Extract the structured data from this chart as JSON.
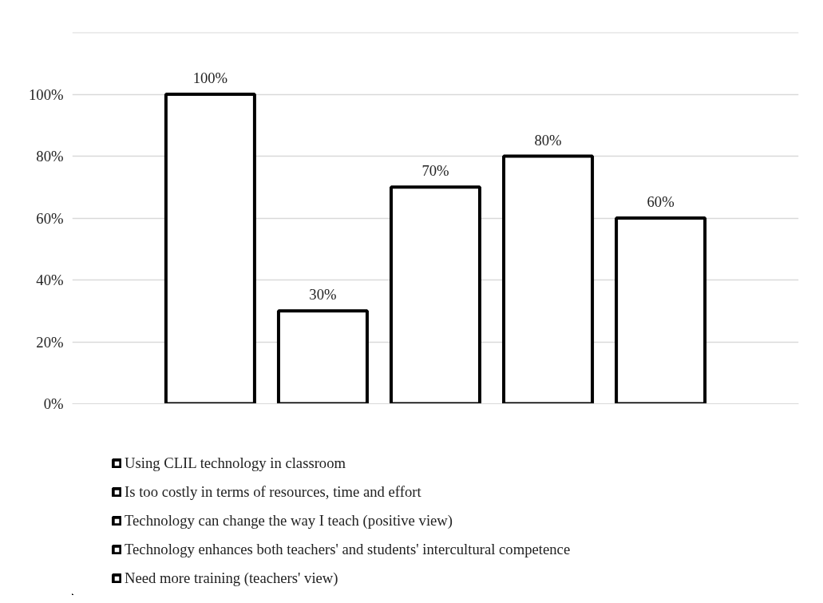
{
  "chart_data": {
    "type": "bar",
    "categories": [
      null
    ],
    "series": [
      {
        "name": "Using CLIL technology in classroom",
        "color": "#ffffff",
        "values": [
          100
        ],
        "value_labels": [
          "100%"
        ]
      },
      {
        "name": "Is too costly in terms of resources, time and effort",
        "color": "#ffffff",
        "values": [
          30
        ],
        "value_labels": [
          "30%"
        ]
      },
      {
        "name": "Technology can change the way I teach (positive view)",
        "color": "#ffffff",
        "values": [
          70
        ],
        "value_labels": [
          "70%"
        ]
      },
      {
        "name": "Technology enhances both teachers' and students' intercultural competence",
        "color": "#ffffff",
        "values": [
          80
        ],
        "value_labels": [
          "80%"
        ]
      },
      {
        "name": "Need more training (teachers' view)",
        "color": "#ffffff",
        "values": [
          60
        ],
        "value_labels": [
          "60%"
        ]
      }
    ],
    "ylim": [
      0,
      120
    ],
    "yticks": [
      {
        "value": 0,
        "label": "0%"
      },
      {
        "value": 20,
        "label": "20%"
      },
      {
        "value": 40,
        "label": "40%"
      },
      {
        "value": 60,
        "label": "60%"
      },
      {
        "value": 80,
        "label": "80%"
      },
      {
        "value": 100,
        "label": "100%"
      },
      {
        "value": 120,
        "label": null
      }
    ],
    "grid": "y",
    "legend": "bottom",
    "tick_labels": "y"
  }
}
